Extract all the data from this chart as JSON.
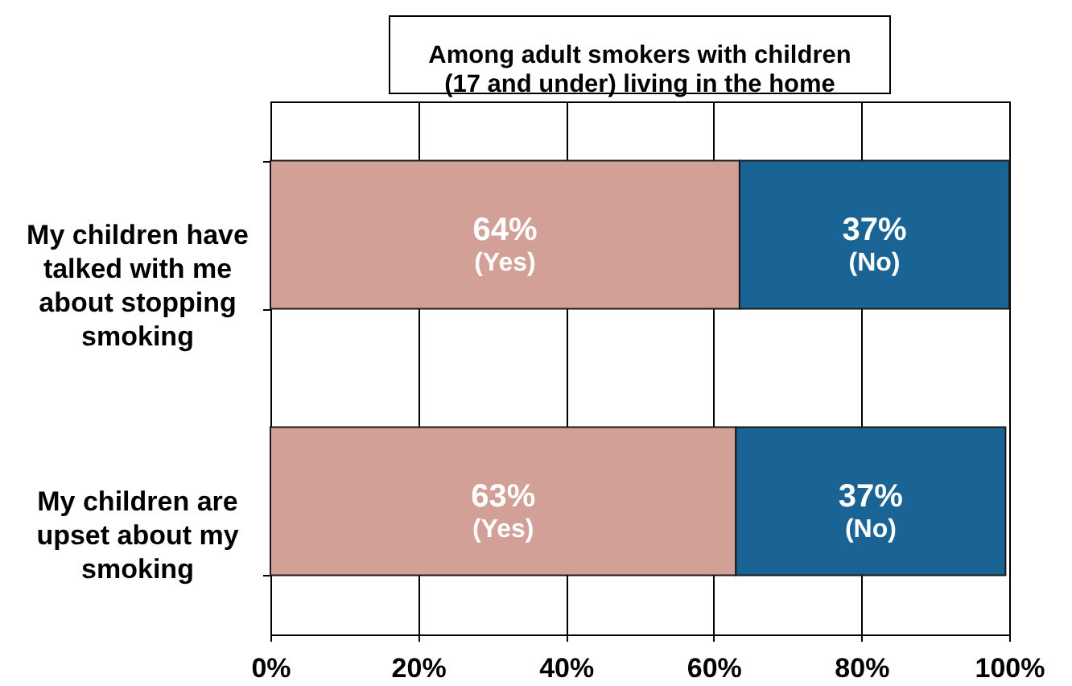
{
  "chart_data": {
    "type": "bar",
    "orientation": "horizontal",
    "stacked": true,
    "title": "Among adult smokers with children (17 and under) living in the home",
    "categories": [
      "My children have talked with me about stopping smoking",
      "My children are upset about my smoking"
    ],
    "series": [
      {
        "name": "(Yes)",
        "color": "#d3a097",
        "values": [
          63.5,
          63
        ],
        "value_labels": [
          "64%",
          "63%"
        ]
      },
      {
        "name": "(No)",
        "color": "#196395",
        "values": [
          36.5,
          36.5
        ],
        "value_labels": [
          "37%",
          "37%"
        ]
      }
    ],
    "xlim": [
      0,
      100
    ],
    "xticks": [
      {
        "value": 0,
        "label": "0%"
      },
      {
        "value": 20,
        "label": "20%"
      },
      {
        "value": 40,
        "label": "40%"
      },
      {
        "value": 60,
        "label": "60%"
      },
      {
        "value": 80,
        "label": "80%"
      },
      {
        "value": 100,
        "label": "100%"
      }
    ],
    "grid": "x"
  }
}
